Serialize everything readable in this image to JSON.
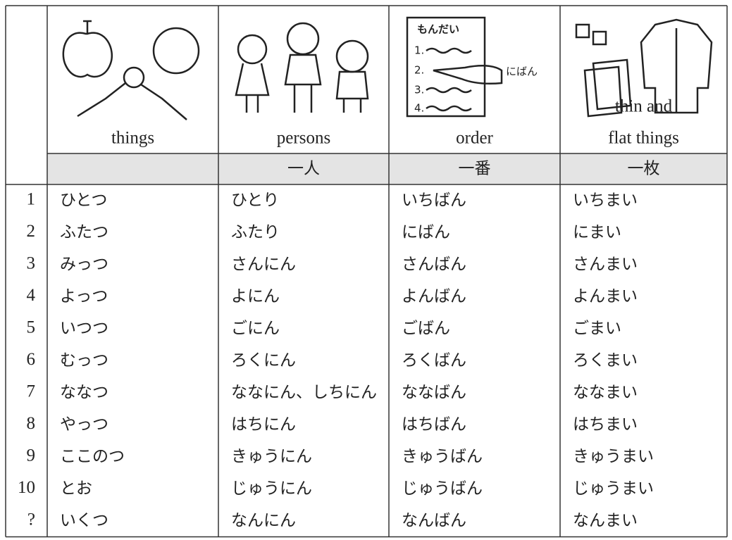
{
  "illustration_text": {
    "title": "もんだい",
    "items": [
      "1.",
      "2.",
      "3.",
      "4."
    ],
    "pointer": "にばん"
  },
  "table": {
    "columns": [
      {
        "label": [
          "things"
        ]
      },
      {
        "label": [
          "persons"
        ],
        "counter": "一人"
      },
      {
        "label": [
          "order"
        ],
        "counter": "一番"
      },
      {
        "label": [
          "thin and",
          "flat things"
        ],
        "counter": "一枚"
      }
    ],
    "rows": [
      {
        "number": 1,
        "readings": [
          "ひとつ",
          "ひとり",
          "いちばん",
          "いちまい"
        ]
      },
      {
        "number": 2,
        "readings": [
          "ふたつ",
          "ふたり",
          "にばん",
          "にまい"
        ]
      },
      {
        "number": 3,
        "readings": [
          "みっつ",
          "さんにん",
          "さんばん",
          "さんまい"
        ]
      },
      {
        "number": 4,
        "readings": [
          "よっつ",
          "よにん",
          "よんばん",
          "よんまい"
        ]
      },
      {
        "number": 5,
        "readings": [
          "いつつ",
          "ごにん",
          "ごばん",
          "ごまい"
        ]
      },
      {
        "number": 6,
        "readings": [
          "むっつ",
          "ろくにん",
          "ろくばん",
          "ろくまい"
        ]
      },
      {
        "number": 7,
        "readings": [
          "ななつ",
          "ななにん、しちにん",
          "ななばん",
          "ななまい"
        ]
      },
      {
        "number": 8,
        "readings": [
          "やっつ",
          "はちにん",
          "はちばん",
          "はちまい"
        ]
      },
      {
        "number": 9,
        "readings": [
          "ここのつ",
          "きゅうにん",
          "きゅうばん",
          "きゅうまい"
        ]
      },
      {
        "number": 10,
        "readings": [
          "とお",
          "じゅうにん",
          "じゅうばん",
          "じゅうまい"
        ]
      },
      {
        "number": "?",
        "readings": [
          "いくつ",
          "なんにん",
          "なんばん",
          "なんまい"
        ]
      }
    ]
  }
}
